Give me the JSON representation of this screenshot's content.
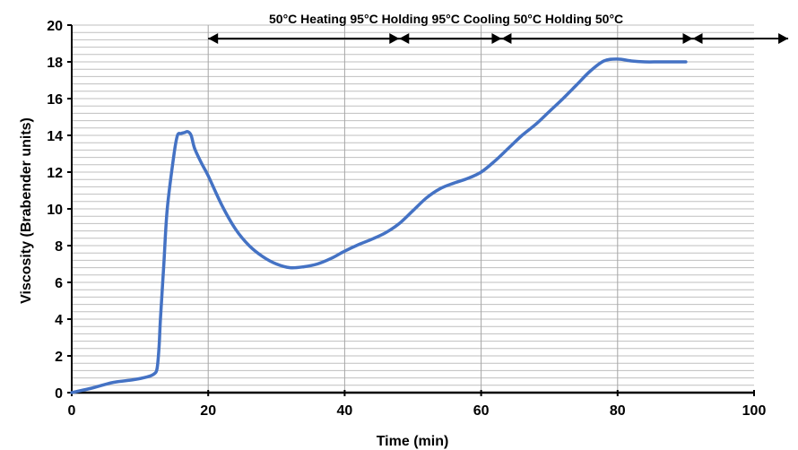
{
  "chart_data": {
    "type": "line",
    "title": "",
    "xlabel": "Time (min)",
    "ylabel": "Viscosity (Brabender units)",
    "xlim": [
      0,
      100
    ],
    "ylim": [
      0,
      20
    ],
    "x_ticks": [
      "0",
      "20",
      "40",
      "60",
      "80",
      "100"
    ],
    "y_ticks": [
      "0",
      "2",
      "4",
      "6",
      "8",
      "10",
      "12",
      "14",
      "16",
      "18",
      "20"
    ],
    "grid": "horizontal minor lines every 0.4 units; vertical lines at x = 20, 40, 60, 80",
    "colors": {
      "line": "#4472C4",
      "axis": "#000000",
      "grid": "#bfbfbf"
    },
    "series": [
      {
        "x": [
          0,
          3,
          6,
          9,
          11,
          12,
          12.5,
          12.8,
          13,
          13.5,
          14,
          15,
          15.5,
          16,
          16.5,
          17,
          17.5,
          18,
          19,
          20,
          22,
          24,
          26,
          28,
          30,
          32,
          34,
          36,
          38,
          40,
          42,
          44,
          46,
          48,
          50,
          52,
          54,
          56,
          58,
          60,
          62,
          64,
          66,
          68,
          70,
          72,
          74,
          76,
          78,
          80,
          82,
          84,
          86,
          88,
          90
        ],
        "y": [
          0,
          0.25,
          0.55,
          0.7,
          0.85,
          1.0,
          1.3,
          2.5,
          4.0,
          7.0,
          10.0,
          13.0,
          14.0,
          14.1,
          14.15,
          14.2,
          14.0,
          13.3,
          12.5,
          11.8,
          10.2,
          8.9,
          8.0,
          7.4,
          7.0,
          6.8,
          6.85,
          7.0,
          7.3,
          7.7,
          8.05,
          8.35,
          8.7,
          9.2,
          9.9,
          10.6,
          11.1,
          11.4,
          11.65,
          12.0,
          12.6,
          13.3,
          14.0,
          14.6,
          15.3,
          16.0,
          16.75,
          17.5,
          18.05,
          18.15,
          18.05,
          18.0,
          18.0,
          18.0,
          18.0
        ]
      }
    ],
    "phases": [
      {
        "label": "50°C",
        "x_start": 0,
        "x_end": 20
      },
      {
        "label": "Heating",
        "x_start": 20,
        "x_end": 48
      },
      {
        "label": "95°C Holding",
        "x_start": 48,
        "x_end": 63
      },
      {
        "label": "95°C Cooling",
        "x_start": 63,
        "x_end": 91
      },
      {
        "label": "50°C Holding",
        "x_start": 91,
        "x_end": 105
      },
      {
        "label": "50°C",
        "x_start": 105,
        "x_end": 105
      }
    ],
    "phase_label_text": "50°C Heating 95°C Holding 95°C Cooling 50°C Holding 50°C",
    "phase_arrows": [
      {
        "x_start": 20,
        "x_end": 48
      },
      {
        "x_start": 48,
        "x_end": 63
      },
      {
        "x_start": 63,
        "x_end": 91
      },
      {
        "x_start": 91,
        "x_end": 105
      }
    ]
  }
}
